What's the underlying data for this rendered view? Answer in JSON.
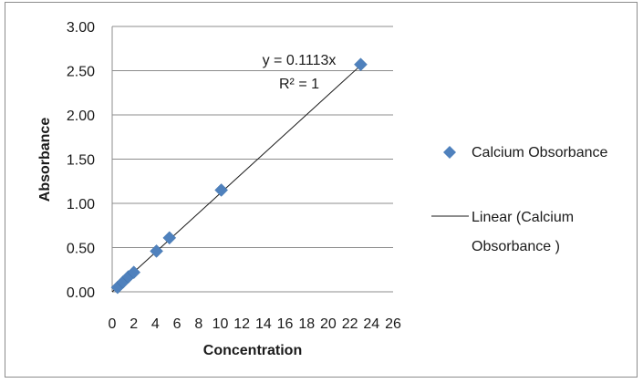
{
  "chart_data": {
    "type": "scatter",
    "xlabel": "Concentration",
    "ylabel": "Absorbance",
    "xlim": [
      0,
      26
    ],
    "ylim": [
      0,
      3
    ],
    "x_ticks": [
      "0",
      "2",
      "4",
      "6",
      "8",
      "10",
      "12",
      "14",
      "16",
      "18",
      "20",
      "22",
      "24",
      "26"
    ],
    "y_ticks": [
      "0.00",
      "0.50",
      "1.00",
      "1.50",
      "2.00",
      "2.50",
      "3.00"
    ],
    "grid": "horizontal",
    "legend_position": "right",
    "series": [
      {
        "name": "Calcium Obsorbance",
        "marker": "diamond",
        "color": "#4f81bd",
        "points": [
          {
            "x": 0.5,
            "y": 0.05
          },
          {
            "x": 1.0,
            "y": 0.11
          },
          {
            "x": 1.5,
            "y": 0.17
          },
          {
            "x": 2.0,
            "y": 0.22
          },
          {
            "x": 4.1,
            "y": 0.46
          },
          {
            "x": 5.3,
            "y": 0.61
          },
          {
            "x": 10.1,
            "y": 1.15
          },
          {
            "x": 23.0,
            "y": 2.57
          }
        ]
      }
    ],
    "trendline": {
      "name": "Linear (Calcium Obsorbance )",
      "slope": 0.1113,
      "color": "#1a1a1a"
    },
    "annotations": {
      "equation": "y = 0.1113x",
      "r_squared": "R² = 1"
    }
  }
}
